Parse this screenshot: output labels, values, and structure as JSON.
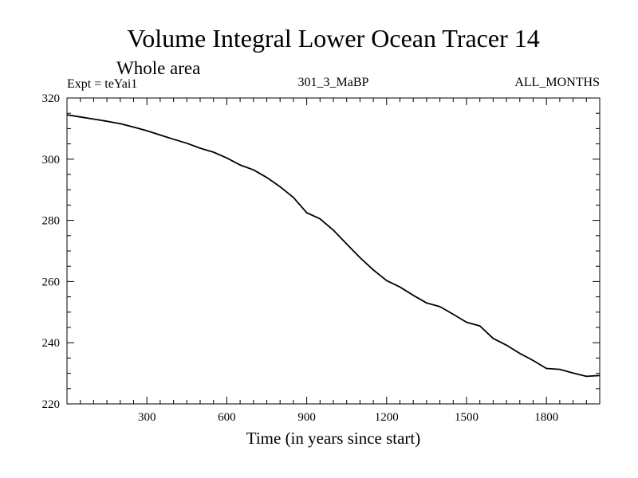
{
  "chart_data": {
    "type": "line",
    "title": "Volume Integral Lower Ocean Tracer 14",
    "subtitle": "Whole area",
    "annotations": {
      "experiment": "Expt = teYai1",
      "run": "301_3_MaBP",
      "months": "ALL_MONTHS"
    },
    "xlabel": "Time (in years since start)",
    "ylabel": "",
    "xlim": [
      0,
      2000
    ],
    "ylim": [
      220,
      320
    ],
    "x_ticks": [
      300,
      600,
      900,
      1200,
      1500,
      1800
    ],
    "y_ticks": [
      220,
      240,
      260,
      280,
      300,
      320
    ],
    "grid": false,
    "series": [
      {
        "name": "Lower Ocean Tracer 14",
        "color": "#000000",
        "x": [
          0,
          50,
          100,
          150,
          200,
          250,
          300,
          350,
          400,
          450,
          500,
          550,
          600,
          650,
          700,
          750,
          800,
          850,
          900,
          950,
          1000,
          1050,
          1100,
          1150,
          1200,
          1250,
          1300,
          1350,
          1400,
          1450,
          1500,
          1550,
          1600,
          1650,
          1700,
          1750,
          1800,
          1850,
          1900,
          1950,
          2000
        ],
        "y": [
          314.5,
          313.8,
          313.1,
          312.4,
          311.6,
          310.5,
          309.3,
          307.9,
          306.5,
          305.2,
          303.6,
          302.3,
          300.4,
          298.1,
          296.5,
          294.0,
          291.0,
          287.5,
          282.5,
          280.5,
          276.8,
          272.3,
          267.8,
          263.8,
          260.3,
          258.2,
          255.5,
          253.0,
          251.8,
          249.3,
          246.7,
          245.5,
          241.4,
          239.2,
          236.5,
          234.2,
          231.6,
          231.3,
          230.1,
          229.0,
          229.3
        ]
      }
    ]
  }
}
